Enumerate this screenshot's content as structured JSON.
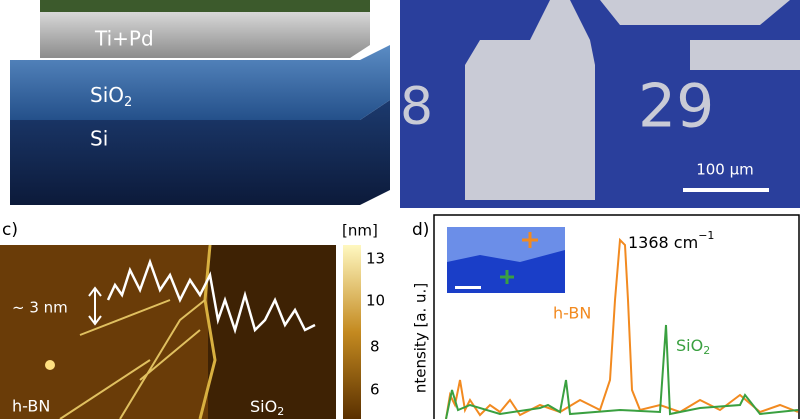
{
  "panel_a": {
    "layers": [
      {
        "text": "Ti+Pd"
      },
      {
        "text": "SiO",
        "sub": "2"
      },
      {
        "text": "Si"
      }
    ]
  },
  "panel_b": {
    "sample_numbers": [
      "8",
      "29"
    ],
    "scale_bar": "100 µm"
  },
  "panel_c": {
    "label": "c)",
    "unit": "[nm]",
    "colorbar_ticks": [
      "13",
      "10",
      "8",
      "6"
    ],
    "height_step": "~ 3 nm",
    "left_label": "h-BN",
    "right_label": {
      "text": "SiO",
      "sub": "2"
    }
  },
  "panel_d": {
    "label": "d)",
    "peak_label": {
      "text": "1368 cm",
      "sup": "−1"
    },
    "hbn_label": "h-BN",
    "sio2_label": {
      "text": "SiO",
      "sub": "2"
    },
    "y_label": "ntensity [a. u.]"
  }
}
